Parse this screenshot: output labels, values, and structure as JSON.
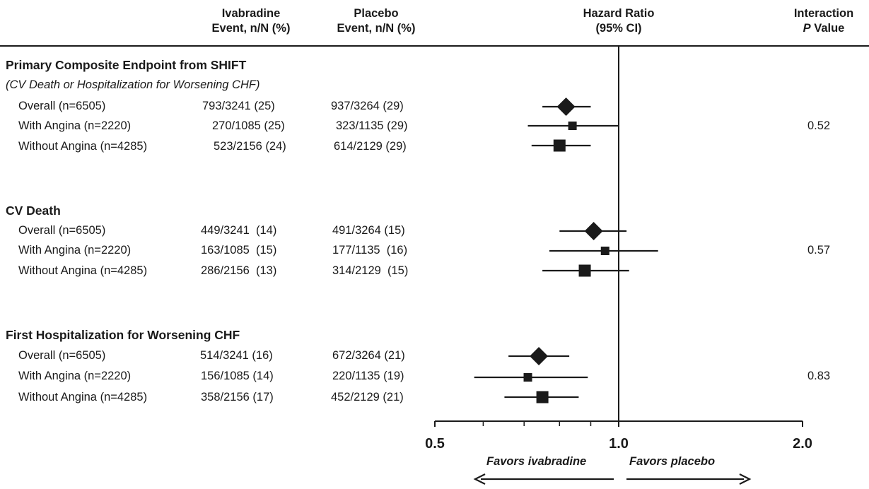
{
  "headers": {
    "ivabradine": [
      "Ivabradine",
      "Event, n/N (%)"
    ],
    "placebo": [
      "Placebo",
      "Event, n/N (%)"
    ],
    "hr": [
      "Hazard Ratio",
      "(95% CI)"
    ],
    "interaction_line1": "Interaction",
    "interaction_p": "P",
    "interaction_value_word": "Value"
  },
  "sections": [
    {
      "title": "Primary Composite Endpoint from SHIFT",
      "subtitle": "(CV Death or Hospitalization for Worsening CHF)",
      "p_value": "0.52",
      "rows": [
        {
          "label": "Overall (n=6505)",
          "ivabradine": "793/3241 (25)",
          "placebo": "937/3264 (29)"
        },
        {
          "label": "With Angina (n=2220)",
          "ivabradine": "270/1085 (25)",
          "placebo": "323/1135 (29)"
        },
        {
          "label": "Without Angina (n=4285)",
          "ivabradine": "523/2156 (24)",
          "placebo": "614/2129 (29)"
        }
      ]
    },
    {
      "title": "CV Death",
      "subtitle": "",
      "p_value": "0.57",
      "rows": [
        {
          "label": "Overall (n=6505)",
          "ivabradine": "449/3241  (14)",
          "placebo": "491/3264 (15)"
        },
        {
          "label": "With Angina (n=2220)",
          "ivabradine": "163/1085  (15)",
          "placebo": "177/1135  (16)"
        },
        {
          "label": "Without Angina (n=4285)",
          "ivabradine": "286/2156  (13)",
          "placebo": "314/2129  (15)"
        }
      ]
    },
    {
      "title": "First Hospitalization for Worsening CHF",
      "subtitle": "",
      "p_value": "0.83",
      "rows": [
        {
          "label": "Overall (n=6505)",
          "ivabradine": "514/3241 (16)",
          "placebo": "672/3264 (21)"
        },
        {
          "label": "With Angina (n=2220)",
          "ivabradine": "156/1085 (14)",
          "placebo": "220/1135 (19)"
        },
        {
          "label": "Without Angina (n=4285)",
          "ivabradine": "358/2156 (17)",
          "placebo": "452/2129 (21)"
        }
      ]
    }
  ],
  "favors": {
    "left": "Favors ivabradine",
    "right": "Favors placebo"
  },
  "chart_data": {
    "type": "forest",
    "scale": "log",
    "xlim": [
      0.5,
      2.0
    ],
    "tick_labels": [
      "0.5",
      "1.0",
      "2.0"
    ],
    "minor_ticks": [
      0.6,
      0.7,
      0.8,
      0.9
    ],
    "reference_line": 1.0,
    "series": [
      {
        "name": "Primary Composite Endpoint from SHIFT",
        "p_interaction": "0.52",
        "points": [
          {
            "label": "Overall (n=6505)",
            "hr": 0.82,
            "lo": 0.75,
            "hi": 0.9,
            "marker": "diamond"
          },
          {
            "label": "With Angina (n=2220)",
            "hr": 0.84,
            "lo": 0.71,
            "hi": 1.0,
            "marker": "square-small"
          },
          {
            "label": "Without Angina (n=4285)",
            "hr": 0.8,
            "lo": 0.72,
            "hi": 0.9,
            "marker": "square"
          }
        ]
      },
      {
        "name": "CV Death",
        "p_interaction": "0.57",
        "points": [
          {
            "label": "Overall (n=6505)",
            "hr": 0.91,
            "lo": 0.8,
            "hi": 1.03,
            "marker": "diamond"
          },
          {
            "label": "With Angina (n=2220)",
            "hr": 0.95,
            "lo": 0.77,
            "hi": 1.16,
            "marker": "square-small"
          },
          {
            "label": "Without Angina (n=4285)",
            "hr": 0.88,
            "lo": 0.75,
            "hi": 1.04,
            "marker": "square"
          }
        ]
      },
      {
        "name": "First Hospitalization for Worsening CHF",
        "p_interaction": "0.83",
        "points": [
          {
            "label": "Overall (n=6505)",
            "hr": 0.74,
            "lo": 0.66,
            "hi": 0.83,
            "marker": "diamond"
          },
          {
            "label": "With Angina (n=2220)",
            "hr": 0.71,
            "lo": 0.58,
            "hi": 0.89,
            "marker": "square-small"
          },
          {
            "label": "Without Angina (n=4285)",
            "hr": 0.75,
            "lo": 0.65,
            "hi": 0.86,
            "marker": "square"
          }
        ]
      }
    ]
  }
}
